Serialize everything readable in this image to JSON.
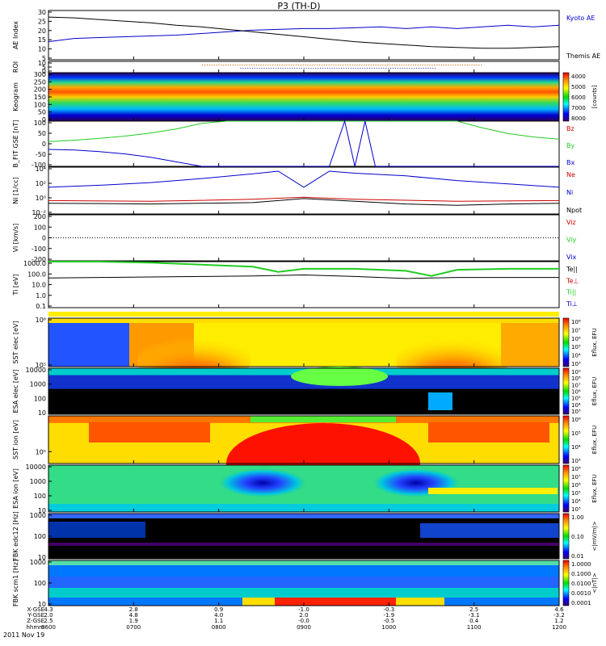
{
  "title": "P3 (TH-D)",
  "date": "2011 Nov 19",
  "time_axis": {
    "row_labels": [
      "X-GSE",
      "Y-GSE",
      "Z-GSE",
      "hhmm"
    ],
    "ticks": [
      {
        "x_gse": "4.3",
        "y_gse": "2.0",
        "z_gse": "2.5",
        "hhmm": "0600"
      },
      {
        "x_gse": "2.8",
        "y_gse": "4.8",
        "z_gse": "1.9",
        "hhmm": "0700"
      },
      {
        "x_gse": "0.9",
        "y_gse": "4.0",
        "z_gse": "1.1",
        "hhmm": "0800"
      },
      {
        "x_gse": "-1.0",
        "y_gse": "2.0",
        "z_gse": "-0.0",
        "hhmm": "0900"
      },
      {
        "x_gse": "-0.3",
        "y_gse": "-1.9",
        "z_gse": "-0.5",
        "hhmm": "1000"
      },
      {
        "x_gse": "2.5",
        "y_gse": "-3.1",
        "z_gse": "0.4",
        "hhmm": "1100"
      },
      {
        "x_gse": "4.6",
        "y_gse": "-3.2",
        "z_gse": "1.2",
        "hhmm": "1200"
      }
    ]
  },
  "colors": {
    "blue": "#0000cc",
    "green": "#22cc22",
    "red": "#cc0000",
    "black": "#000000"
  },
  "chart_data": [
    {
      "type": "line",
      "panel": "ae",
      "ylabel": "AE Index",
      "ylim": [
        0,
        30
      ],
      "yticks": [
        "5",
        "10",
        "15",
        "20",
        "25",
        "30"
      ],
      "series": [
        {
          "name": "Kyoto AE",
          "color": "#0000cc",
          "x": [
            0,
            5,
            10,
            15,
            20,
            25,
            30,
            35,
            40,
            45,
            50,
            55,
            60,
            65,
            70,
            75,
            80,
            85,
            90,
            95,
            100
          ],
          "y": [
            11,
            13,
            13.5,
            14,
            14.5,
            15,
            16,
            17,
            18,
            18.5,
            19,
            19,
            19.5,
            20,
            19,
            20,
            19,
            20,
            21,
            20,
            21
          ]
        },
        {
          "name": "Themis AE",
          "color": "#000000",
          "x": [
            0,
            5,
            10,
            15,
            20,
            25,
            30,
            35,
            40,
            45,
            50,
            55,
            60,
            65,
            70,
            75,
            80,
            85,
            90,
            95,
            100
          ],
          "y": [
            26,
            25.5,
            24.5,
            23.5,
            22.5,
            21,
            20,
            18.5,
            17,
            15.5,
            14,
            12.5,
            11,
            10,
            9,
            8,
            7.5,
            7,
            7,
            7.5,
            8
          ]
        }
      ]
    },
    {
      "type": "table",
      "panel": "roi",
      "ylabel": "ROI",
      "yticks": [
        "0",
        "5",
        "10"
      ]
    },
    {
      "type": "heatmap",
      "panel": "keogram",
      "ylabel": "Keogram",
      "yticks": [
        "0",
        "50",
        "100",
        "150",
        "200",
        "250",
        "300"
      ],
      "colorbar": {
        "label": "[counts]",
        "ticks": [
          "4000",
          "5000",
          "6000",
          "7000",
          "8000"
        ]
      }
    },
    {
      "type": "line",
      "panel": "bfit",
      "ylabel": "B_FIT GSE [nT]",
      "ylim": [
        -100,
        100
      ],
      "yticks": [
        "-100",
        "-50",
        "0",
        "50",
        "100"
      ],
      "series": [
        {
          "name": "Bz",
          "color": "#cc0000",
          "x": [],
          "y": []
        },
        {
          "name": "By",
          "color": "#22cc22",
          "x": [
            0,
            5,
            10,
            15,
            20,
            25,
            30,
            35,
            40,
            45,
            50,
            55,
            60,
            62,
            65,
            67,
            70,
            75,
            80,
            85,
            90,
            95,
            100
          ],
          "y": [
            10,
            15,
            24,
            34,
            47,
            65,
            90,
            100,
            100,
            100,
            100,
            100,
            100,
            100,
            100,
            100,
            100,
            100,
            100,
            70,
            45,
            30,
            20
          ]
        },
        {
          "name": "Bx",
          "color": "#0000cc",
          "x": [
            0,
            5,
            10,
            15,
            20,
            25,
            30,
            35,
            40,
            42,
            50,
            55,
            58,
            60,
            62,
            64,
            70,
            80,
            90,
            100
          ],
          "y": [
            -25,
            -28,
            -35,
            -45,
            -60,
            -80,
            -100,
            -100,
            -100,
            -100,
            -100,
            -100,
            100,
            -100,
            100,
            -100,
            -100,
            -100,
            -100,
            -100
          ]
        }
      ]
    },
    {
      "type": "line",
      "panel": "ni",
      "ylabel": "Ni [1/cc]",
      "yticks": [
        "10⁻²",
        "10⁰",
        "10²",
        "10⁴"
      ],
      "series": [
        {
          "name": "Ne",
          "color": "#cc0000",
          "x": [
            0,
            20,
            40,
            50,
            60,
            80,
            100
          ],
          "y": [
            -0.5,
            -0.6,
            -0.3,
            0,
            -0.3,
            -0.6,
            -0.5
          ]
        },
        {
          "name": "Ni",
          "color": "#0000cc",
          "x": [
            0,
            10,
            20,
            30,
            40,
            45,
            50,
            55,
            60,
            70,
            80,
            90,
            100
          ],
          "y": [
            1.5,
            1.8,
            2.2,
            2.8,
            3.5,
            3.9,
            1.5,
            3.9,
            3.6,
            3.2,
            2.5,
            2,
            1.5
          ]
        },
        {
          "name": "Npot",
          "color": "#000000",
          "x": [
            0,
            20,
            40,
            50,
            60,
            70,
            80,
            90,
            100
          ],
          "y": [
            -0.9,
            -1,
            -0.8,
            -0.2,
            -0.6,
            -1,
            -1.2,
            -1,
            -0.9
          ]
        }
      ]
    },
    {
      "type": "line",
      "panel": "vi",
      "ylabel": "Vi [km/s]",
      "ylim": [
        -200,
        200
      ],
      "yticks": [
        "-200",
        "-100",
        "0",
        "100",
        "200"
      ],
      "series": [
        {
          "name": "Viz",
          "color": "#cc0000",
          "x": [],
          "y": []
        },
        {
          "name": "Viy",
          "color": "#22cc22",
          "x": [],
          "y": []
        },
        {
          "name": "Vix",
          "color": "#0000cc",
          "x": [],
          "y": []
        }
      ]
    },
    {
      "type": "line",
      "panel": "ti",
      "ylabel": "Ti [eV]",
      "yticks": [
        "0.1",
        "1.0",
        "10.0",
        "100.0",
        "1000.0"
      ],
      "series": [
        {
          "name": "Te||",
          "color": "#000000",
          "x": [
            0,
            10,
            20,
            30,
            40,
            50,
            60,
            70,
            80,
            90,
            100
          ],
          "y": [
            1.7,
            1.75,
            1.8,
            1.85,
            1.9,
            2,
            1.85,
            1.65,
            1.75,
            1.75,
            1.75
          ]
        },
        {
          "name": "Te⊥",
          "color": "#cc0000",
          "x": [],
          "y": []
        },
        {
          "name": "Ti||",
          "color": "#22cc22",
          "x": [
            0,
            10,
            20,
            30,
            40,
            45,
            50,
            60,
            70,
            75,
            80,
            90,
            100
          ],
          "y": [
            3.3,
            3.3,
            3.2,
            3.0,
            2.8,
            2.3,
            2.6,
            2.6,
            2.4,
            1.9,
            2.5,
            2.6,
            2.6
          ]
        },
        {
          "name": "Ti⊥",
          "color": "#0000cc",
          "x": [],
          "y": []
        }
      ]
    },
    {
      "type": "heatmap",
      "panel": "sst_e",
      "ylabel": "SST elec [eV]",
      "yticks": [
        "10⁵",
        "10⁶"
      ],
      "colorbar": {
        "label": "Eflux, EFU",
        "ticks": [
          "10⁸",
          "10⁷",
          "10⁶",
          "10⁵",
          "10⁴",
          "10³"
        ]
      }
    },
    {
      "type": "heatmap",
      "panel": "esa_e",
      "ylabel": "ESA elec [eV]",
      "yticks": [
        "10",
        "100",
        "1000",
        "10000"
      ],
      "colorbar": {
        "label": "Eflux, EFU",
        "ticks": [
          "10⁹",
          "10⁸",
          "10⁷",
          "10⁶",
          "10⁵",
          "10⁴",
          "10³"
        ]
      }
    },
    {
      "type": "heatmap",
      "panel": "sst_i",
      "ylabel": "SST ion [eV]",
      "yticks": [
        "10⁵"
      ],
      "colorbar": {
        "label": "Eflux, EFU",
        "ticks": [
          "10⁶",
          "10⁵",
          "10⁴",
          "10³"
        ]
      }
    },
    {
      "type": "heatmap",
      "panel": "esa_i",
      "ylabel": "ESA ion [eV]",
      "yticks": [
        "10",
        "100",
        "1000",
        "10000"
      ],
      "colorbar": {
        "label": "Eflux, EFU",
        "ticks": [
          "10⁸",
          "10⁷",
          "10⁶",
          "10⁵",
          "10⁴",
          "10³"
        ]
      }
    },
    {
      "type": "heatmap",
      "panel": "fbk_e",
      "ylabel": "FBK edc12 [Hz]",
      "yticks": [
        "10",
        "100",
        "1000"
      ],
      "colorbar": {
        "label": "<|mV/m|>",
        "ticks": [
          "1.00",
          "0.10",
          "0.01"
        ]
      }
    },
    {
      "type": "heatmap",
      "panel": "fbk_b",
      "ylabel": "FBK scm1 [Hz]",
      "yticks": [
        "10",
        "100",
        "1000"
      ],
      "colorbar": {
        "label": "<|nT|>",
        "ticks": [
          "1.0000",
          "0.1000",
          "0.0100",
          "0.0010",
          "0.0001"
        ]
      }
    }
  ]
}
